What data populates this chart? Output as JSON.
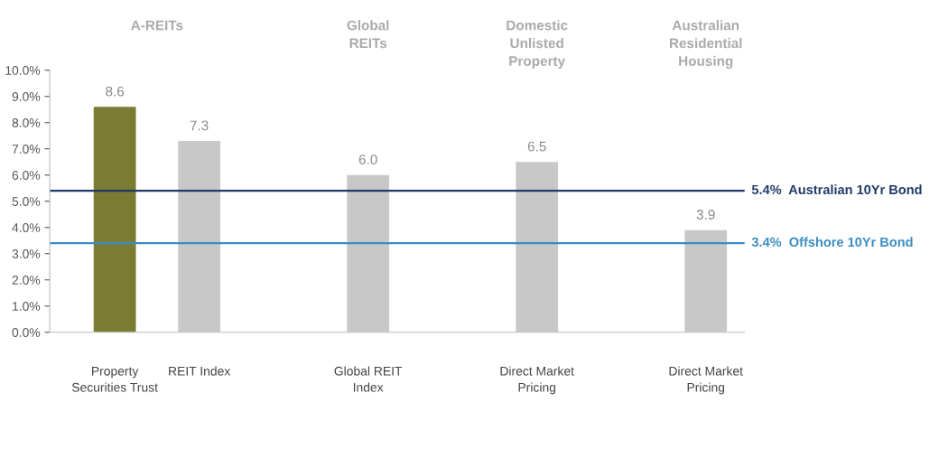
{
  "chart_data": {
    "type": "bar",
    "categories": [
      "Property\nSecurities Trust",
      "REIT Index",
      null,
      "Global REIT\nIndex",
      null,
      "Direct Market\nPricing",
      null,
      "Direct Market\nPricing"
    ],
    "values": [
      8.6,
      7.3,
      null,
      6.0,
      null,
      6.5,
      null,
      3.9
    ],
    "colors": [
      "#7b7b33",
      "#c8c8c8",
      null,
      "#c8c8c8",
      null,
      "#c8c8c8",
      null,
      "#c8c8c8"
    ],
    "value_labels": [
      "8.6",
      "7.3",
      null,
      "6.0",
      null,
      "6.5",
      null,
      "3.9"
    ],
    "ylim": [
      0,
      10
    ],
    "yticks": [
      {
        "value": 0,
        "label": "0.0%"
      },
      {
        "value": 1,
        "label": "1.0%"
      },
      {
        "value": 2,
        "label": "2.0%"
      },
      {
        "value": 3,
        "label": "3.0%"
      },
      {
        "value": 4,
        "label": "4.0%"
      },
      {
        "value": 5,
        "label": "5.0%"
      },
      {
        "value": 6,
        "label": "6.0%"
      },
      {
        "value": 7,
        "label": "7.0%"
      },
      {
        "value": 8,
        "label": "8.0%"
      },
      {
        "value": 9,
        "label": "9.0%"
      },
      {
        "value": 10,
        "label": "10.0%"
      }
    ],
    "ref_lines": [
      {
        "axis": "y",
        "value": 5.4,
        "label": "5.4%  Australian 10Yr Bond",
        "color": "#1f3a68"
      },
      {
        "axis": "y",
        "value": 3.4,
        "label": "3.4%  Offshore 10Yr Bond",
        "color": "#3a8dc2"
      }
    ],
    "annotations": [
      "A-REITs",
      "Global\nREITs",
      "Domestic\nUnlisted\nProperty",
      "Australian\nResidential\nHousing"
    ],
    "grid": false,
    "legend": false
  }
}
